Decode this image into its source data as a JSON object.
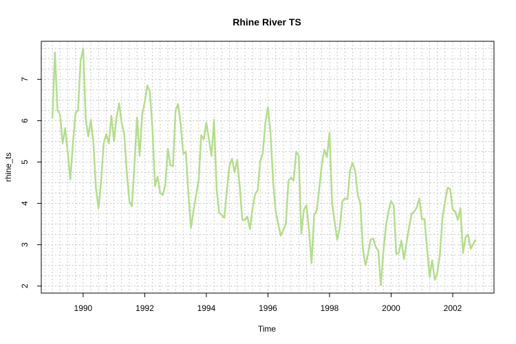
{
  "chart_data": {
    "type": "line",
    "title": "Rhine River TS",
    "xlabel": "Time",
    "ylabel": "rhine_ts",
    "xlim": [
      1988.64,
      2003.34
    ],
    "ylim": [
      1.83,
      7.92
    ],
    "x_ticks": [
      1990,
      1992,
      1994,
      1996,
      1998,
      2000,
      2002
    ],
    "y_ticks": [
      2,
      3,
      4,
      5,
      6,
      7
    ],
    "grid": true,
    "line_color": "#b3de8c",
    "series": [
      {
        "start": 1989.0,
        "frequency": 12,
        "values": [
          6.05,
          7.65,
          6.25,
          6.15,
          5.45,
          5.82,
          5.22,
          4.58,
          5.45,
          6.18,
          6.25,
          7.45,
          7.75,
          6.05,
          5.62,
          6.02,
          5.45,
          4.35,
          3.88,
          4.55,
          5.45,
          5.68,
          5.45,
          6.12,
          5.5,
          6.08,
          6.42,
          5.95,
          5.68,
          4.75,
          4.05,
          3.93,
          4.95,
          6.08,
          5.15,
          6.15,
          6.45,
          6.85,
          6.7,
          5.8,
          4.42,
          4.65,
          4.25,
          4.2,
          4.45,
          5.32,
          4.92,
          4.9,
          6.25,
          6.4,
          5.92,
          5.2,
          5.25,
          4.25,
          3.4,
          3.82,
          4.2,
          4.55,
          5.65,
          5.55,
          5.95,
          5.55,
          5.15,
          6.02,
          4.35,
          3.78,
          3.72,
          3.65,
          4.32,
          4.92,
          5.08,
          4.75,
          5.05,
          4.42,
          3.6,
          3.6,
          3.68,
          3.38,
          3.88,
          4.22,
          4.32,
          5.02,
          5.22,
          5.95,
          6.33,
          5.7,
          4.55,
          3.82,
          3.5,
          3.22,
          3.35,
          3.52,
          4.55,
          4.62,
          4.55,
          5.25,
          5.15,
          3.27,
          3.85,
          3.95,
          3.35,
          2.55,
          3.72,
          3.82,
          4.35,
          4.95,
          5.3,
          5.12,
          5.7,
          4.0,
          3.55,
          3.12,
          3.42,
          4.05,
          4.12,
          4.1,
          4.8,
          4.98,
          4.78,
          4.2,
          4.0,
          2.9,
          2.5,
          2.78,
          3.12,
          3.15,
          2.95,
          2.85,
          2.02,
          2.85,
          3.45,
          3.82,
          4.05,
          3.95,
          2.78,
          2.8,
          3.1,
          2.65,
          3.05,
          3.42,
          3.75,
          3.8,
          3.9,
          4.12,
          3.62,
          3.62,
          2.92,
          2.22,
          2.62,
          2.15,
          2.32,
          2.75,
          3.65,
          4.05,
          4.38,
          4.35,
          3.85,
          3.8,
          3.6,
          3.88,
          2.8,
          3.18,
          3.25,
          2.9,
          3.02,
          3.12
        ]
      }
    ]
  }
}
